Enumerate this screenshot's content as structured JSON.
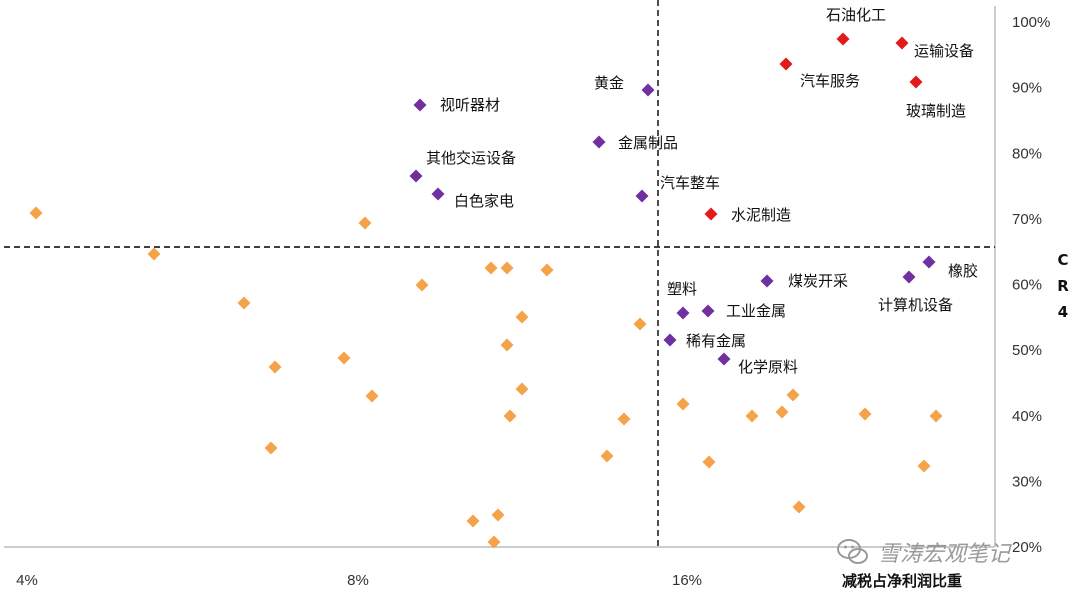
{
  "chart_data": {
    "type": "scatter",
    "xlabel": "减税占净利润比重",
    "ylabel": "CR4",
    "x_ticks": [
      "4%",
      "8%",
      "16%"
    ],
    "y_ticks": [
      "20%",
      "30%",
      "40%",
      "50%",
      "60%",
      "70%",
      "80%",
      "90%",
      "100%"
    ],
    "xlim": [
      3.9,
      21.3
    ],
    "ylim": [
      0.2,
      1.0
    ],
    "x_divider": 14.9,
    "y_divider": 0.655,
    "colors": {
      "red": "#e31a1c",
      "purple": "#7030a0",
      "orange": "#f5a34b"
    },
    "series": [
      {
        "color": "red",
        "points": [
          {
            "x": 19.5,
            "y": 0.975,
            "label": "石油化工"
          },
          {
            "x": 20.9,
            "y": 0.97,
            "label": "运输设备"
          },
          {
            "x": 21.2,
            "y": 0.91,
            "label": "玻璃制造"
          },
          {
            "x": 18.4,
            "y": 0.937,
            "label": "汽车服务"
          },
          {
            "x": 16.4,
            "y": 0.71,
            "label": "水泥制造"
          }
        ]
      },
      {
        "color": "purple",
        "points": [
          {
            "x": 15.1,
            "y": 0.897,
            "label": "黄金"
          },
          {
            "x": 9.2,
            "y": 0.874,
            "label": "视听器材"
          },
          {
            "x": 13.1,
            "y": 0.82,
            "label": "金属制品"
          },
          {
            "x": 9.1,
            "y": 0.768,
            "label": "其他交运设备"
          },
          {
            "x": 9.5,
            "y": 0.739,
            "label": "白色家电"
          },
          {
            "x": 15.0,
            "y": 0.737,
            "label": "汽车整车"
          },
          {
            "x": 21.7,
            "y": 0.634,
            "label": "橡胶"
          },
          {
            "x": 21.2,
            "y": 0.612,
            "label": "计算机设备"
          },
          {
            "x": 17.7,
            "y": 0.606,
            "label": "煤炭开采"
          },
          {
            "x": 15.6,
            "y": 0.557,
            "label": "塑料"
          },
          {
            "x": 16.3,
            "y": 0.56,
            "label": "工业金属"
          },
          {
            "x": 15.3,
            "y": 0.516,
            "label": "稀有金属"
          },
          {
            "x": 16.7,
            "y": 0.487,
            "label": "化学原料"
          }
        ]
      },
      {
        "color": "orange",
        "points": [
          {
            "x": 4.1,
            "y": 0.711
          },
          {
            "x": 7.8,
            "y": 0.694
          },
          {
            "x": 6.1,
            "y": 0.646
          },
          {
            "x": 11.2,
            "y": 0.624
          },
          {
            "x": 11.6,
            "y": 0.624
          },
          {
            "x": 12.5,
            "y": 0.621
          },
          {
            "x": 9.6,
            "y": 0.599
          },
          {
            "x": 7.3,
            "y": 0.573
          },
          {
            "x": 11.9,
            "y": 0.552
          },
          {
            "x": 14.8,
            "y": 0.541
          },
          {
            "x": 11.6,
            "y": 0.509
          },
          {
            "x": 8.9,
            "y": 0.488
          },
          {
            "x": 7.7,
            "y": 0.475
          },
          {
            "x": 12.0,
            "y": 0.441
          },
          {
            "x": 8.6,
            "y": 0.43
          },
          {
            "x": 15.8,
            "y": 0.42
          },
          {
            "x": 18.9,
            "y": 0.432
          },
          {
            "x": 11.7,
            "y": 0.4
          },
          {
            "x": 14.3,
            "y": 0.396
          },
          {
            "x": 17.7,
            "y": 0.4
          },
          {
            "x": 18.4,
            "y": 0.407
          },
          {
            "x": 20.2,
            "y": 0.404
          },
          {
            "x": 21.5,
            "y": 0.401
          },
          {
            "x": 7.7,
            "y": 0.35
          },
          {
            "x": 14.0,
            "y": 0.341
          },
          {
            "x": 16.4,
            "y": 0.33
          },
          {
            "x": 21.4,
            "y": 0.324
          },
          {
            "x": 19.3,
            "y": 0.26
          },
          {
            "x": 11.3,
            "y": 0.25
          },
          {
            "x": 10.8,
            "y": 0.237
          },
          {
            "x": 11.3,
            "y": 0.205
          }
        ]
      }
    ]
  },
  "watermark": {
    "text": "雪涛宏观笔记",
    "icon": "wechat-icon"
  }
}
